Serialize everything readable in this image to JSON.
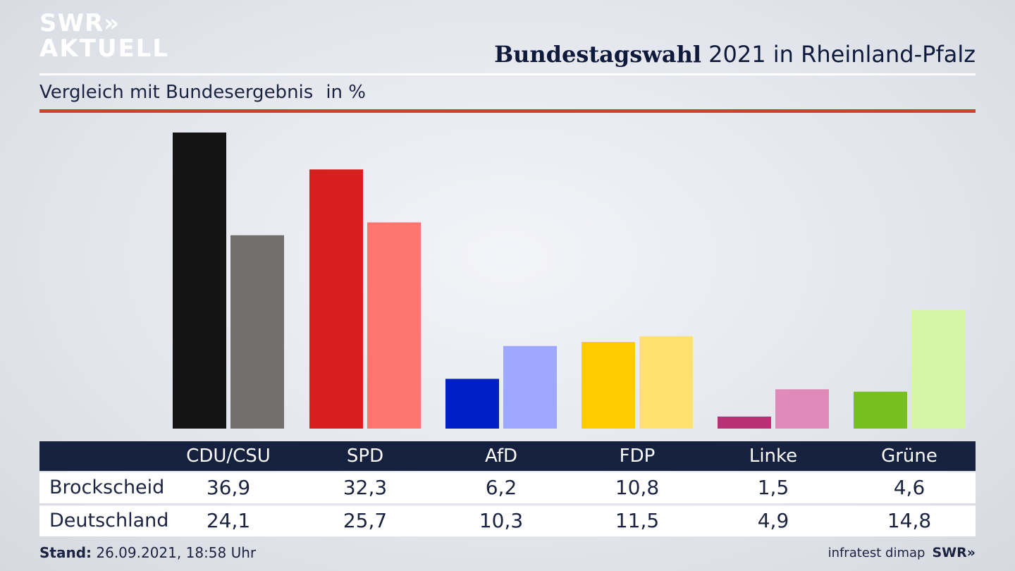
{
  "logo": {
    "line1": "SWR»",
    "line2": "AKTUELL"
  },
  "header": {
    "title_bold": "Bundestagswahl",
    "title_rest": " 2021 in Rheinland-Pfalz"
  },
  "subheader": {
    "text": "Vergleich mit Bundesergebnis",
    "unit": "in %"
  },
  "chart_data": {
    "type": "bar",
    "categories": [
      "CDU/CSU",
      "SPD",
      "AfD",
      "FDP",
      "Linke",
      "Grüne"
    ],
    "series": [
      {
        "name": "Brockscheid",
        "values": [
          36.9,
          32.3,
          6.2,
          10.8,
          1.5,
          4.6
        ],
        "colors": [
          "#141414",
          "#d71f1f",
          "#0020c7",
          "#ffcc00",
          "#bb2f77",
          "#79be1f"
        ]
      },
      {
        "name": "Deutschland",
        "values": [
          24.1,
          25.7,
          10.3,
          11.5,
          4.9,
          14.8
        ],
        "colors": [
          "#72706e",
          "#ff7570",
          "#9fa8ff",
          "#ffe070",
          "#e08ab9",
          "#d5f5a7"
        ]
      }
    ],
    "value_labels": {
      "Brockscheid": [
        "36,9",
        "32,3",
        "6,2",
        "10,8",
        "1,5",
        "4,6"
      ],
      "Deutschland": [
        "24,1",
        "25,7",
        "10,3",
        "11,5",
        "4,9",
        "14,8"
      ]
    },
    "ylim": [
      0,
      36.9
    ],
    "grid": false,
    "legend": "table-below"
  },
  "footer": {
    "stand_label": "Stand:",
    "stand_value": " 26.09.2021, 18:58 Uhr",
    "source": "infratest dimap",
    "brand": "SWR»"
  }
}
